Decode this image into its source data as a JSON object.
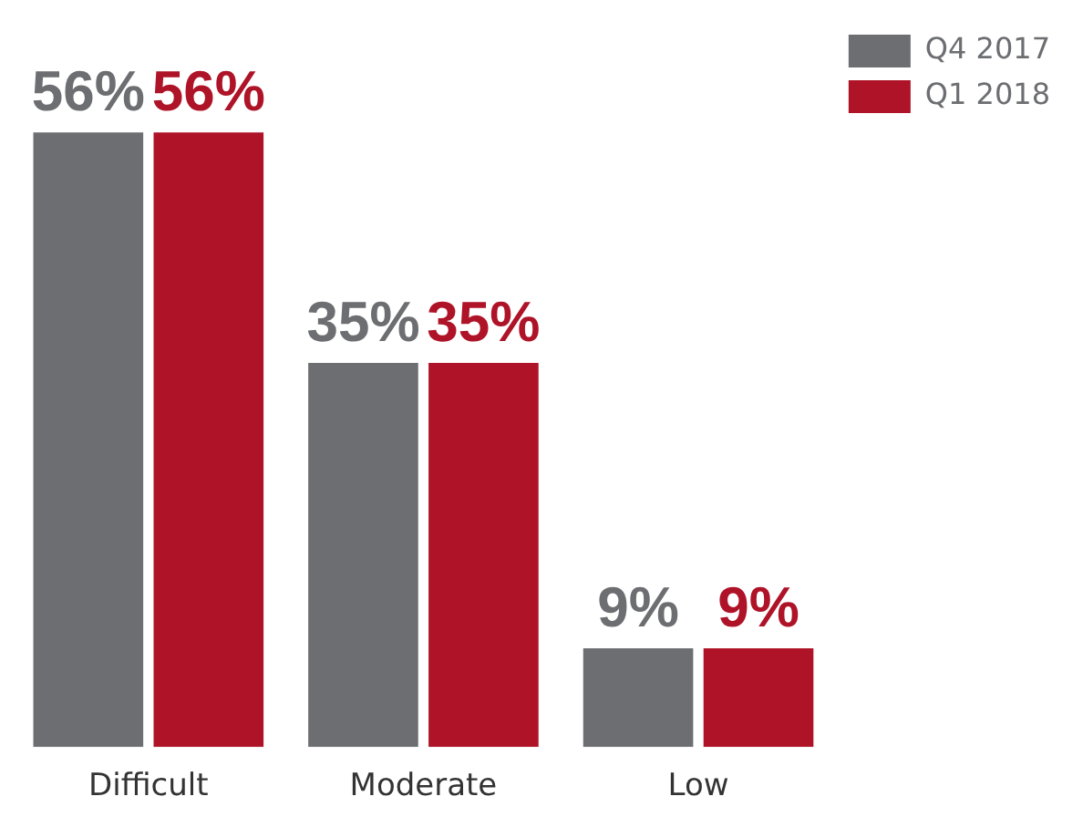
{
  "chart_data": {
    "type": "bar",
    "categories": [
      "Difficult",
      "Moderate",
      "Low"
    ],
    "series": [
      {
        "name": "Q4 2017",
        "color": "#6d6e71",
        "values": [
          56,
          35,
          9
        ],
        "value_labels": [
          "56%",
          "35%",
          "9%"
        ]
      },
      {
        "name": "Q1 2018",
        "color": "#ae1328",
        "values": [
          56,
          35,
          9
        ],
        "value_labels": [
          "56%",
          "35%",
          "9%"
        ]
      }
    ],
    "legend": "top right"
  }
}
